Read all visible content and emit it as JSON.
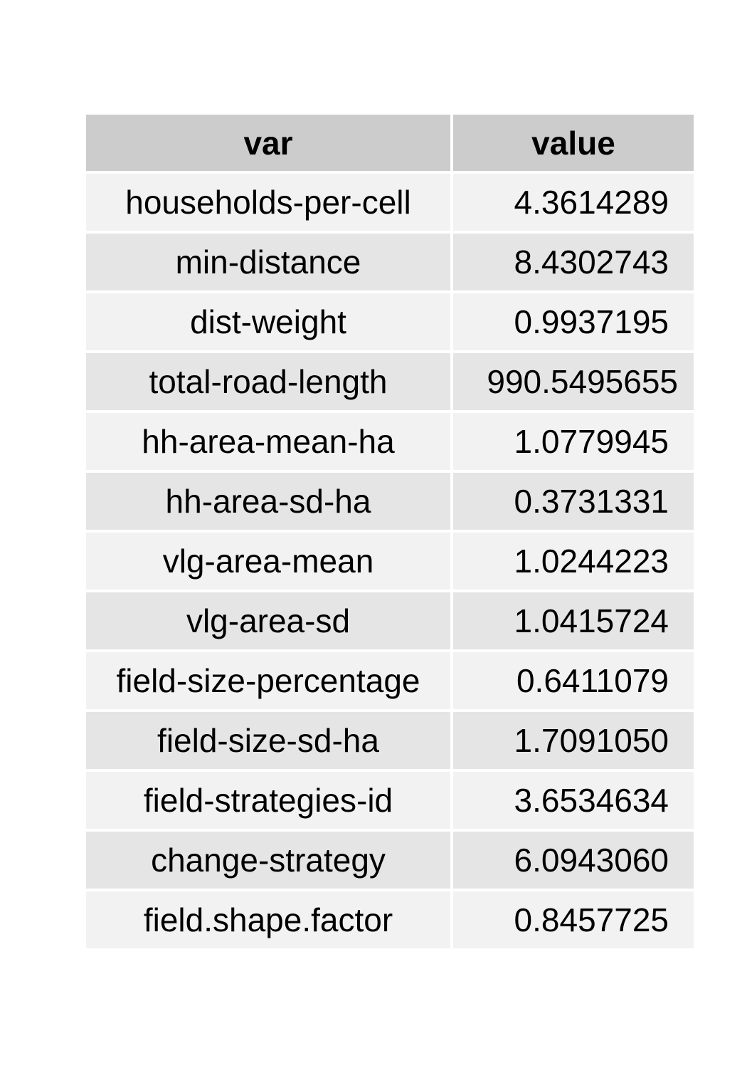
{
  "chart_data": {
    "type": "table",
    "columns": [
      "var",
      "value"
    ],
    "rows": [
      {
        "var": "households-per-cell",
        "value": "4.3614289"
      },
      {
        "var": "min-distance",
        "value": "8.4302743"
      },
      {
        "var": "dist-weight",
        "value": "0.9937195"
      },
      {
        "var": "total-road-length",
        "value": "990.5495655"
      },
      {
        "var": "hh-area-mean-ha",
        "value": "1.0779945"
      },
      {
        "var": "hh-area-sd-ha",
        "value": "0.3731331"
      },
      {
        "var": "vlg-area-mean",
        "value": "1.0244223"
      },
      {
        "var": "vlg-area-sd",
        "value": "1.0415724"
      },
      {
        "var": "field-size-percentage",
        "value": "0.6411079"
      },
      {
        "var": "field-size-sd-ha",
        "value": "1.7091050"
      },
      {
        "var": "field-strategies-id",
        "value": "3.6534634"
      },
      {
        "var": "change-strategy",
        "value": "6.0943060"
      },
      {
        "var": "field.shape.factor",
        "value": "0.8457725"
      }
    ],
    "colors": {
      "header_bg": "#cccccc",
      "row_light": "#f2f2f2",
      "row_dark": "#e5e5e5"
    }
  }
}
